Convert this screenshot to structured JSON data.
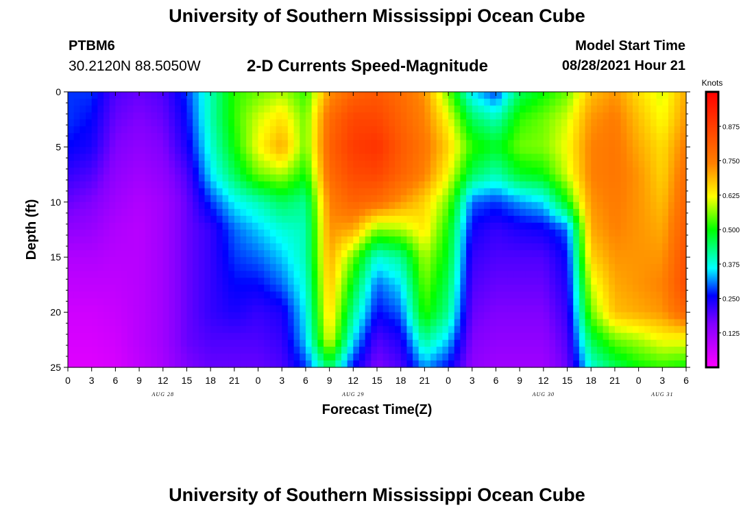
{
  "header": {
    "main_title": "University of Southern Mississippi Ocean Cube",
    "station_id": "PTBM6",
    "station_coords": "30.2120N  88.5050W",
    "plot_title": "2-D Currents Speed-Magnitude",
    "model_start_label": "Model Start Time",
    "model_start_value": "08/28/2021 Hour 21"
  },
  "footer": {
    "title": "University of Southern Mississippi Ocean Cube"
  },
  "chart_data": {
    "type": "heatmap",
    "title": "2-D Currents Speed-Magnitude",
    "xlabel": "Forecast Time(Z)",
    "ylabel": "Depth (ft)",
    "x_ticks": [
      "0",
      "3",
      "6",
      "9",
      "12",
      "15",
      "18",
      "21",
      "0",
      "3",
      "6",
      "9",
      "12",
      "15",
      "18",
      "21",
      "0",
      "3",
      "6",
      "9",
      "12",
      "15",
      "18",
      "21",
      "0",
      "3",
      "6"
    ],
    "date_labels": [
      {
        "label": "AUG 28",
        "tick_index": 4
      },
      {
        "label": "AUG 29",
        "tick_index": 12
      },
      {
        "label": "AUG 30",
        "tick_index": 20
      },
      {
        "label": "AUG 31",
        "tick_index": 25
      }
    ],
    "x_hours": [
      0,
      78
    ],
    "y_ticks": [
      0,
      5,
      10,
      15,
      20,
      25
    ],
    "ylim": [
      0,
      25
    ],
    "colorbar": {
      "label": "Knots",
      "ticks": [
        "0.125",
        "0.250",
        "0.375",
        "0.500",
        "0.625",
        "0.750",
        "0.875"
      ],
      "range": [
        0,
        1.0
      ]
    },
    "depths": [
      0,
      2.5,
      5,
      7.5,
      10,
      12.5,
      15,
      17.5,
      20,
      22.5,
      25
    ],
    "times": [
      0,
      3,
      6,
      9,
      12,
      15,
      18,
      21,
      24,
      27,
      30,
      33,
      36,
      39,
      42,
      45,
      48,
      51,
      54,
      57,
      60,
      63,
      66,
      69,
      72,
      75,
      78
    ],
    "values": [
      [
        0.28,
        0.28,
        0.2,
        0.18,
        0.2,
        0.28,
        0.4,
        0.52,
        0.55,
        0.58,
        0.52,
        0.72,
        0.8,
        0.82,
        0.78,
        0.72,
        0.55,
        0.35,
        0.28,
        0.45,
        0.5,
        0.55,
        0.68,
        0.72,
        0.65,
        0.6,
        0.7
      ],
      [
        0.28,
        0.26,
        0.18,
        0.16,
        0.18,
        0.26,
        0.4,
        0.52,
        0.6,
        0.65,
        0.55,
        0.78,
        0.86,
        0.86,
        0.8,
        0.74,
        0.62,
        0.45,
        0.4,
        0.52,
        0.55,
        0.6,
        0.72,
        0.75,
        0.68,
        0.62,
        0.72
      ],
      [
        0.26,
        0.24,
        0.16,
        0.14,
        0.16,
        0.24,
        0.38,
        0.5,
        0.62,
        0.7,
        0.55,
        0.8,
        0.88,
        0.9,
        0.82,
        0.76,
        0.66,
        0.52,
        0.48,
        0.55,
        0.56,
        0.62,
        0.74,
        0.76,
        0.7,
        0.65,
        0.75
      ],
      [
        0.22,
        0.2,
        0.14,
        0.12,
        0.14,
        0.2,
        0.35,
        0.45,
        0.55,
        0.58,
        0.5,
        0.78,
        0.85,
        0.86,
        0.8,
        0.74,
        0.62,
        0.45,
        0.4,
        0.48,
        0.5,
        0.6,
        0.74,
        0.76,
        0.72,
        0.66,
        0.78
      ],
      [
        0.18,
        0.16,
        0.12,
        0.1,
        0.12,
        0.18,
        0.28,
        0.36,
        0.4,
        0.45,
        0.42,
        0.74,
        0.8,
        0.78,
        0.72,
        0.66,
        0.55,
        0.3,
        0.28,
        0.32,
        0.35,
        0.5,
        0.72,
        0.75,
        0.72,
        0.68,
        0.8
      ],
      [
        0.14,
        0.13,
        0.1,
        0.09,
        0.12,
        0.18,
        0.22,
        0.3,
        0.34,
        0.38,
        0.4,
        0.72,
        0.7,
        0.56,
        0.58,
        0.64,
        0.5,
        0.25,
        0.22,
        0.24,
        0.25,
        0.3,
        0.7,
        0.74,
        0.72,
        0.7,
        0.82
      ],
      [
        0.1,
        0.1,
        0.09,
        0.09,
        0.12,
        0.18,
        0.22,
        0.28,
        0.3,
        0.34,
        0.4,
        0.7,
        0.55,
        0.38,
        0.42,
        0.58,
        0.48,
        0.22,
        0.2,
        0.2,
        0.2,
        0.26,
        0.66,
        0.72,
        0.72,
        0.72,
        0.84
      ],
      [
        0.08,
        0.08,
        0.08,
        0.09,
        0.12,
        0.18,
        0.22,
        0.26,
        0.26,
        0.3,
        0.38,
        0.68,
        0.48,
        0.3,
        0.35,
        0.55,
        0.45,
        0.2,
        0.18,
        0.18,
        0.18,
        0.24,
        0.6,
        0.7,
        0.72,
        0.74,
        0.85
      ],
      [
        0.06,
        0.06,
        0.07,
        0.09,
        0.12,
        0.18,
        0.22,
        0.24,
        0.22,
        0.24,
        0.36,
        0.66,
        0.42,
        0.26,
        0.3,
        0.52,
        0.42,
        0.18,
        0.16,
        0.16,
        0.16,
        0.22,
        0.55,
        0.68,
        0.7,
        0.72,
        0.8
      ],
      [
        0.05,
        0.05,
        0.06,
        0.09,
        0.12,
        0.18,
        0.2,
        0.2,
        0.2,
        0.22,
        0.34,
        0.62,
        0.35,
        0.2,
        0.24,
        0.42,
        0.34,
        0.16,
        0.14,
        0.14,
        0.14,
        0.2,
        0.46,
        0.55,
        0.58,
        0.62,
        0.62
      ],
      [
        0.04,
        0.04,
        0.05,
        0.08,
        0.11,
        0.16,
        0.18,
        0.18,
        0.18,
        0.2,
        0.28,
        0.45,
        0.26,
        0.16,
        0.2,
        0.32,
        0.26,
        0.14,
        0.12,
        0.12,
        0.12,
        0.18,
        0.38,
        0.45,
        0.5,
        0.52,
        0.5
      ]
    ]
  }
}
